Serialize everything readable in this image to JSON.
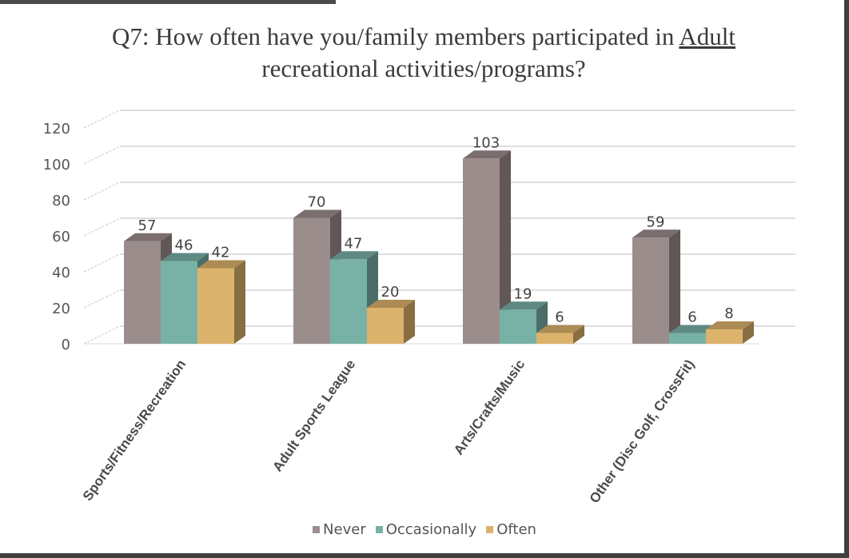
{
  "chart_data": {
    "type": "bar",
    "title_line1": "Q7: How often have you/family members participated in",
    "title_emphasis": "Adult",
    "title_line2": "recreational activities/programs?",
    "categories": [
      "Sports/Fitness/Recreation",
      "Adult Sports League",
      "Arts/Crafts/Music",
      "Other (Disc Golf, CrossFit)"
    ],
    "series": [
      {
        "name": "Never",
        "values": [
          57,
          70,
          103,
          59
        ],
        "color": "#9c8d8d"
      },
      {
        "name": "Occasionally",
        "values": [
          46,
          47,
          19,
          6
        ],
        "color": "#78b1a6"
      },
      {
        "name": "Often",
        "values": [
          42,
          20,
          6,
          8
        ],
        "color": "#dcb36c"
      }
    ],
    "data_labels": [
      [
        "57",
        "70",
        "103",
        "59"
      ],
      [
        "46",
        "47",
        "19",
        "6"
      ],
      [
        "42",
        "20",
        "6",
        "8"
      ]
    ],
    "y_ticks": [
      "0",
      "20",
      "40",
      "60",
      "80",
      "100",
      "120"
    ],
    "ylim": [
      0,
      120
    ],
    "grid": true,
    "legend_position": "bottom",
    "style": "3d-clustered-column"
  }
}
